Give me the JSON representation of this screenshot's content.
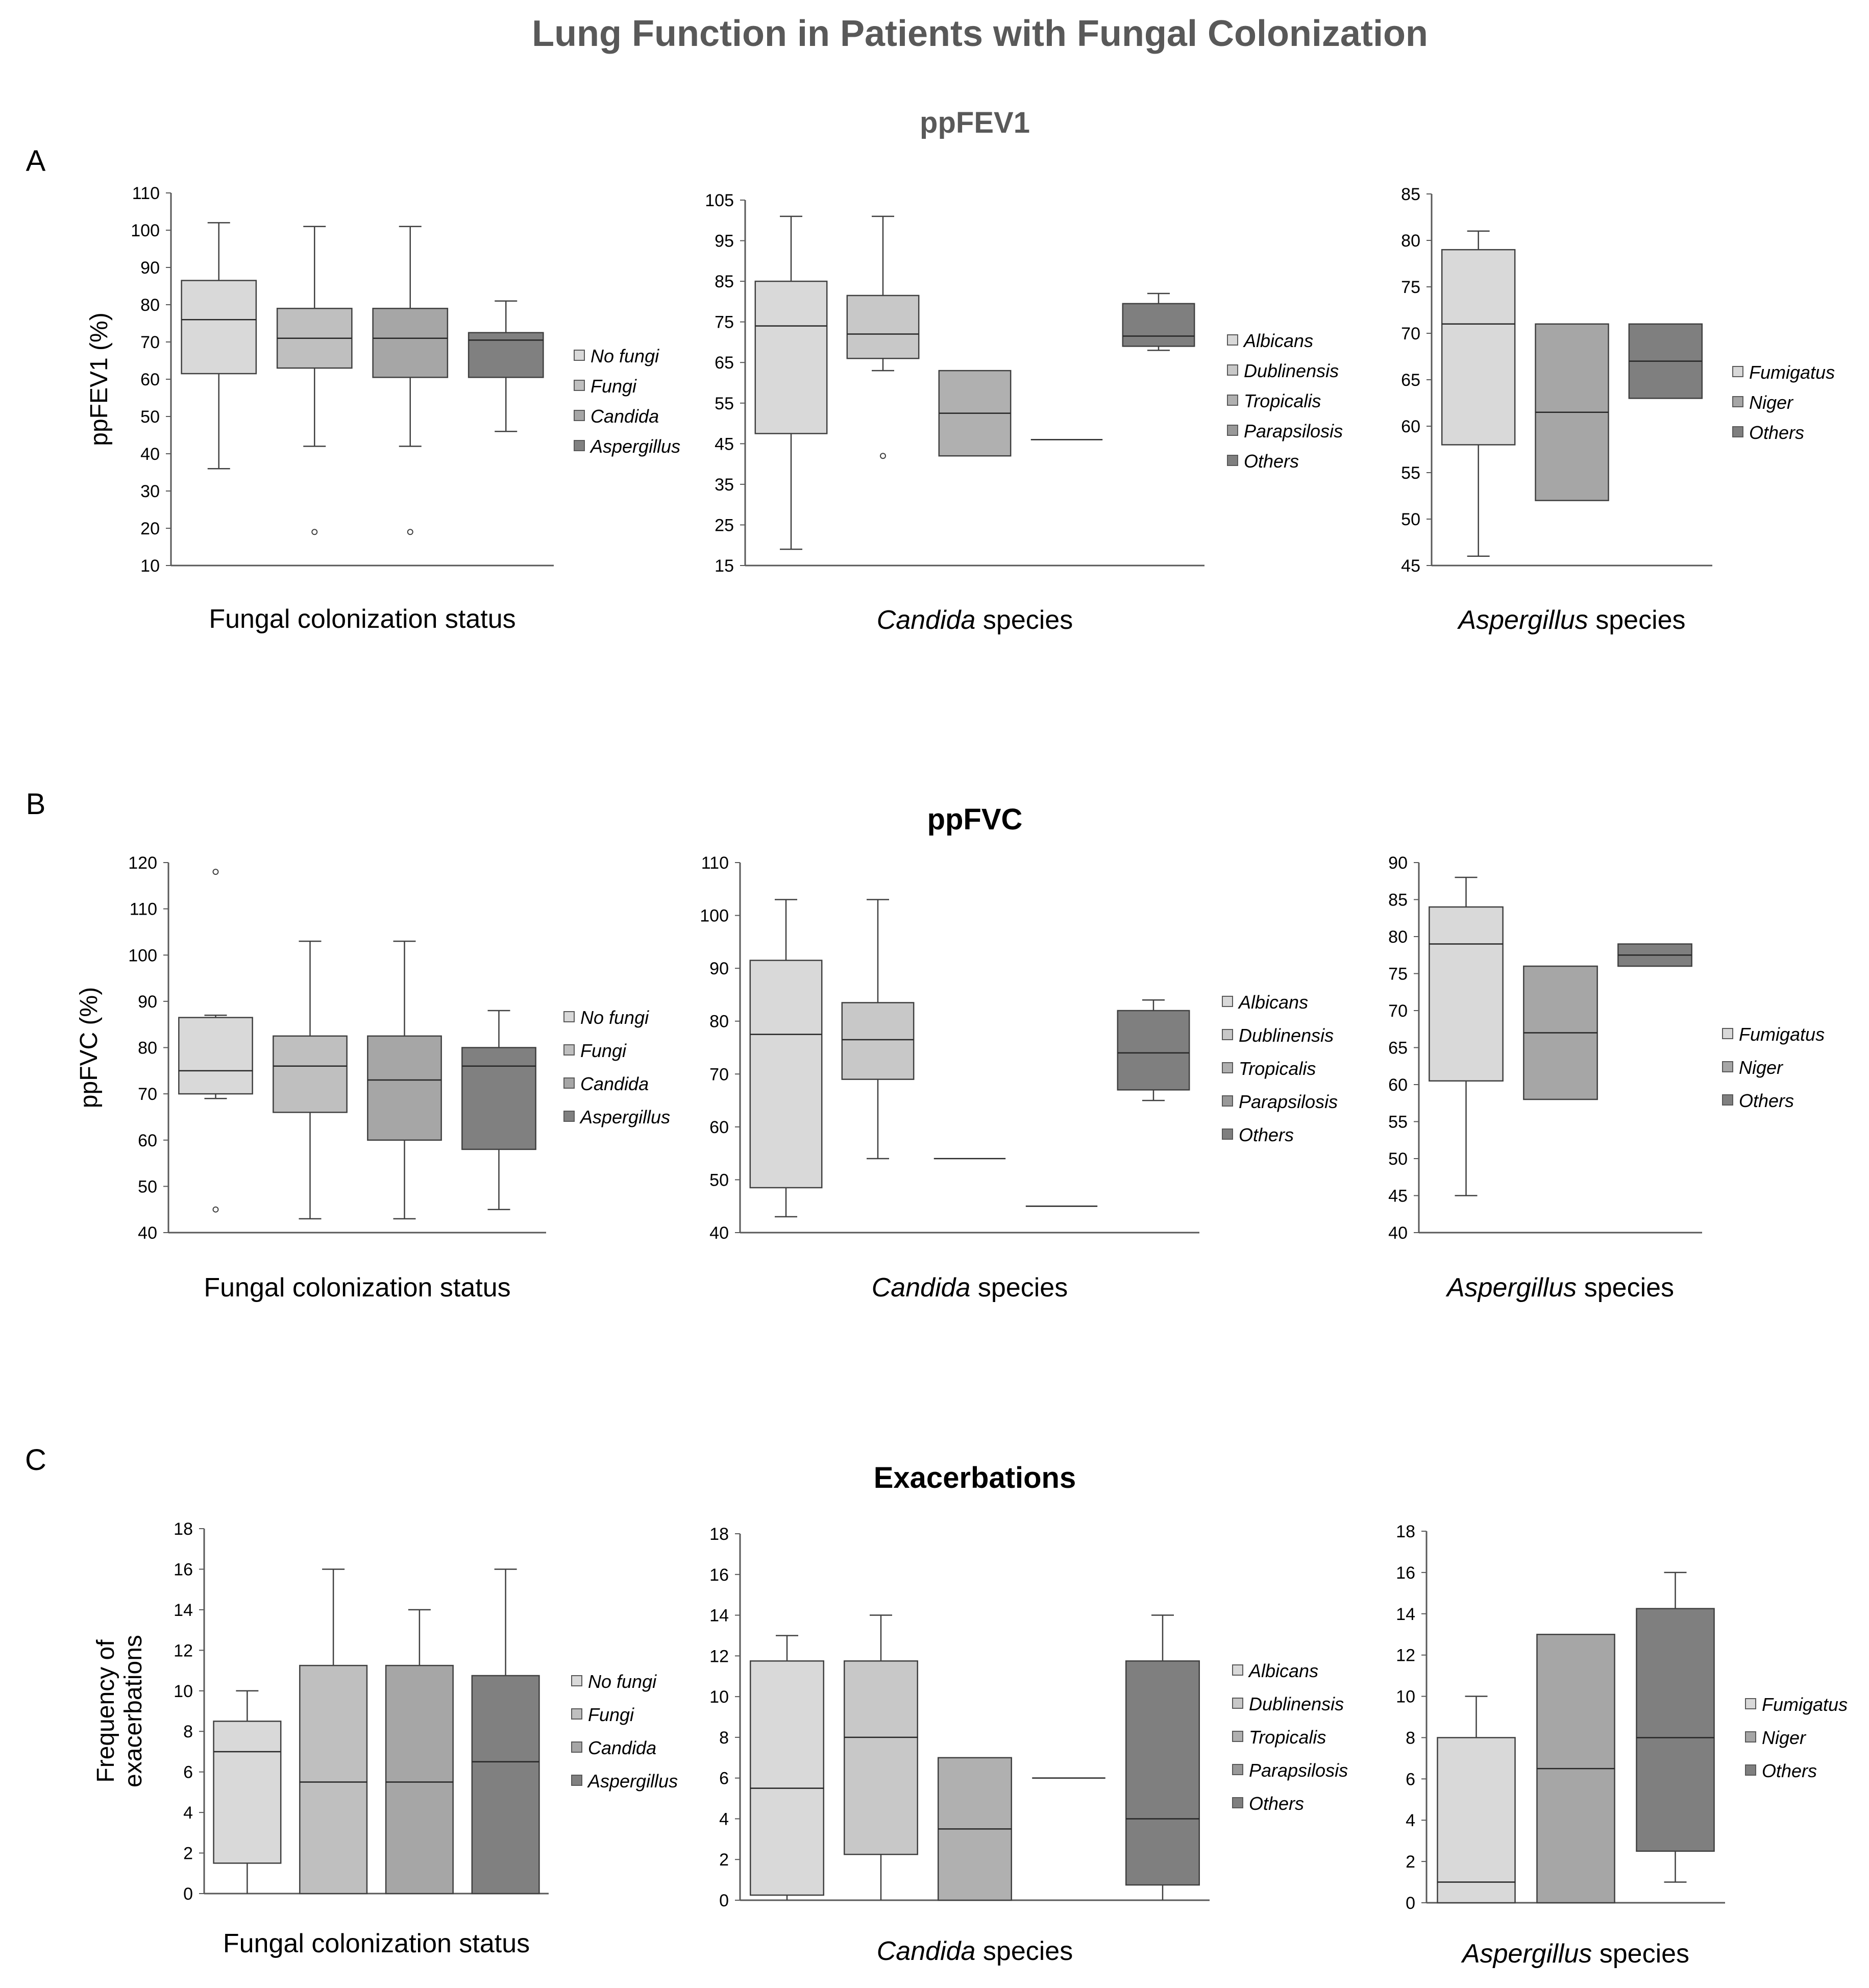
{
  "title": "Lung Function in Patients with Fungal Colonization",
  "sections": [
    {
      "letter": "A",
      "title": "ppFEV1",
      "title_color": "#595959"
    },
    {
      "letter": "B",
      "title": "ppFVC",
      "title_color": "#000000"
    },
    {
      "letter": "C",
      "title": "Exacerbations",
      "title_color": "#000000"
    }
  ],
  "colors": {
    "No fungi": "#d9d9d9",
    "Fungi": "#bfbfbf",
    "Candida": "#a6a6a6",
    "Aspergillus": "#808080",
    "Albicans": "#d9d9d9",
    "Dublinensis": "#c8c8c8",
    "Tropicalis": "#b0b0b0",
    "Parapsilosis": "#999999",
    "Others": "#7f7f7f",
    "Fumigatus": "#d9d9d9",
    "Niger": "#a6a6a6",
    "axis": "#595959"
  },
  "chart_data": [
    {
      "type": "box",
      "section": "A",
      "ylabel": "ppFEV1 (%)",
      "xlabel": "Fungal colonization status",
      "xlabel_italic": "",
      "ylim": [
        10,
        110
      ],
      "yticks": [
        10,
        20,
        30,
        40,
        50,
        60,
        70,
        80,
        90,
        100,
        110
      ],
      "categories": [
        "No fungi",
        "Fungi",
        "Candida",
        "Aspergillus"
      ],
      "boxes": [
        {
          "name": "No fungi",
          "min": 36,
          "q1": 61.5,
          "median": 76,
          "q3": 86.5,
          "max": 102,
          "outliers": []
        },
        {
          "name": "Fungi",
          "min": 42,
          "q1": 63,
          "median": 71,
          "q3": 79,
          "max": 101,
          "outliers": [
            19
          ]
        },
        {
          "name": "Candida",
          "min": 42,
          "q1": 60.5,
          "median": 71,
          "q3": 79,
          "max": 101,
          "outliers": [
            19
          ]
        },
        {
          "name": "Aspergillus",
          "min": 46,
          "q1": 60.5,
          "median": 70.5,
          "q3": 72.5,
          "max": 81,
          "outliers": []
        }
      ]
    },
    {
      "type": "box",
      "section": "A",
      "ylabel": "",
      "xlabel": " species",
      "xlabel_italic": "Candida",
      "ylim": [
        15,
        105
      ],
      "yticks": [
        15,
        25,
        35,
        45,
        55,
        65,
        75,
        85,
        95,
        105
      ],
      "categories": [
        "Albicans",
        "Dublinensis",
        "Tropicalis",
        "Parapsilosis",
        "Others"
      ],
      "boxes": [
        {
          "name": "Albicans",
          "min": 19,
          "q1": 47.5,
          "median": 74,
          "q3": 85,
          "max": 101,
          "outliers": []
        },
        {
          "name": "Dublinensis",
          "min": 63,
          "q1": 66,
          "median": 72,
          "q3": 81.5,
          "max": 101,
          "outliers": [
            42
          ]
        },
        {
          "name": "Tropicalis",
          "min": 42,
          "q1": 42,
          "median": 52.5,
          "q3": 63,
          "max": 63,
          "outliers": []
        },
        {
          "name": "Parapsilosis",
          "min": 46,
          "q1": 46,
          "median": 46,
          "q3": 46,
          "max": 46,
          "outliers": []
        },
        {
          "name": "Others",
          "min": 68,
          "q1": 69,
          "median": 71.5,
          "q3": 79.5,
          "max": 82,
          "outliers": []
        }
      ]
    },
    {
      "type": "box",
      "section": "A",
      "ylabel": "",
      "xlabel": " species",
      "xlabel_italic": "Aspergillus",
      "ylim": [
        45,
        85
      ],
      "yticks": [
        45,
        50,
        55,
        60,
        65,
        70,
        75,
        80,
        85
      ],
      "categories": [
        "Fumigatus",
        "Niger",
        "Others"
      ],
      "boxes": [
        {
          "name": "Fumigatus",
          "min": 46,
          "q1": 58,
          "median": 71,
          "q3": 79,
          "max": 81,
          "outliers": []
        },
        {
          "name": "Niger",
          "min": 52,
          "q1": 52,
          "median": 61.5,
          "q3": 71,
          "max": 71,
          "outliers": []
        },
        {
          "name": "Others",
          "min": 63,
          "q1": 63,
          "median": 67,
          "q3": 71,
          "max": 71,
          "outliers": []
        }
      ]
    },
    {
      "type": "box",
      "section": "B",
      "ylabel": "ppFVC (%)",
      "xlabel": "Fungal colonization status",
      "xlabel_italic": "",
      "ylim": [
        40,
        120
      ],
      "yticks": [
        40,
        50,
        60,
        70,
        80,
        90,
        100,
        110,
        120
      ],
      "categories": [
        "No fungi",
        "Fungi",
        "Candida",
        "Aspergillus"
      ],
      "boxes": [
        {
          "name": "No fungi",
          "min": 69,
          "q1": 70,
          "median": 75,
          "q3": 86.5,
          "max": 87,
          "outliers": [
            118,
            45
          ]
        },
        {
          "name": "Fungi",
          "min": 43,
          "q1": 66,
          "median": 76,
          "q3": 82.5,
          "max": 103,
          "outliers": []
        },
        {
          "name": "Candida",
          "min": 43,
          "q1": 60,
          "median": 73,
          "q3": 82.5,
          "max": 103,
          "outliers": []
        },
        {
          "name": "Aspergillus",
          "min": 45,
          "q1": 58,
          "median": 76,
          "q3": 80,
          "max": 88,
          "outliers": []
        }
      ]
    },
    {
      "type": "box",
      "section": "B",
      "ylabel": "",
      "xlabel": " species",
      "xlabel_italic": "Candida",
      "ylim": [
        40,
        110
      ],
      "yticks": [
        40,
        50,
        60,
        70,
        80,
        90,
        100,
        110
      ],
      "categories": [
        "Albicans",
        "Dublinensis",
        "Tropicalis",
        "Parapsilosis",
        "Others"
      ],
      "boxes": [
        {
          "name": "Albicans",
          "min": 43,
          "q1": 48.5,
          "median": 77.5,
          "q3": 91.5,
          "max": 103,
          "outliers": []
        },
        {
          "name": "Dublinensis",
          "min": 54,
          "q1": 69,
          "median": 76.5,
          "q3": 83.5,
          "max": 103,
          "outliers": []
        },
        {
          "name": "Tropicalis",
          "min": 54,
          "q1": 54,
          "median": 54,
          "q3": 54,
          "max": 54,
          "outliers": []
        },
        {
          "name": "Parapsilosis",
          "min": 45,
          "q1": 45,
          "median": 45,
          "q3": 45,
          "max": 45,
          "outliers": []
        },
        {
          "name": "Others",
          "min": 65,
          "q1": 67,
          "median": 74,
          "q3": 82,
          "max": 84,
          "outliers": []
        }
      ]
    },
    {
      "type": "box",
      "section": "B",
      "ylabel": "",
      "xlabel": " species",
      "xlabel_italic": "Aspergillus",
      "ylim": [
        40,
        90
      ],
      "yticks": [
        40,
        45,
        50,
        55,
        60,
        65,
        70,
        75,
        80,
        85,
        90
      ],
      "categories": [
        "Fumigatus",
        "Niger",
        "Others"
      ],
      "boxes": [
        {
          "name": "Fumigatus",
          "min": 45,
          "q1": 60.5,
          "median": 79,
          "q3": 84,
          "max": 88,
          "outliers": []
        },
        {
          "name": "Niger",
          "min": 58,
          "q1": 58,
          "median": 67,
          "q3": 76,
          "max": 76,
          "outliers": []
        },
        {
          "name": "Others",
          "min": 76,
          "q1": 76,
          "median": 77.5,
          "q3": 79,
          "max": 79,
          "outliers": []
        }
      ]
    },
    {
      "type": "box",
      "section": "C",
      "ylabel": "Frequency of exacerbations",
      "ylabel_lines": [
        "Frequency of",
        "exacerbations"
      ],
      "xlabel": "Fungal colonization status",
      "xlabel_italic": "",
      "ylim": [
        0,
        18
      ],
      "yticks": [
        0,
        2,
        4,
        6,
        8,
        10,
        12,
        14,
        16,
        18
      ],
      "categories": [
        "No fungi",
        "Fungi",
        "Candida",
        "Aspergillus"
      ],
      "boxes": [
        {
          "name": "No fungi",
          "min": 0,
          "q1": 1.5,
          "median": 7,
          "q3": 8.5,
          "max": 10,
          "outliers": []
        },
        {
          "name": "Fungi",
          "min": 0,
          "q1": 0,
          "median": 5.5,
          "q3": 11.25,
          "max": 16,
          "outliers": []
        },
        {
          "name": "Candida",
          "min": 0,
          "q1": 0,
          "median": 5.5,
          "q3": 11.25,
          "max": 14,
          "outliers": []
        },
        {
          "name": "Aspergillus",
          "min": 0,
          "q1": 0,
          "median": 6.5,
          "q3": 10.75,
          "max": 16,
          "outliers": []
        }
      ]
    },
    {
      "type": "box",
      "section": "C",
      "ylabel": "",
      "xlabel": " species",
      "xlabel_italic": "Candida",
      "ylim": [
        0,
        18
      ],
      "yticks": [
        0,
        2,
        4,
        6,
        8,
        10,
        12,
        14,
        16,
        18
      ],
      "categories": [
        "Albicans",
        "Dublinensis",
        "Tropicalis",
        "Parapsilosis",
        "Others"
      ],
      "boxes": [
        {
          "name": "Albicans",
          "min": 0,
          "q1": 0.25,
          "median": 5.5,
          "q3": 11.75,
          "max": 13,
          "outliers": []
        },
        {
          "name": "Dublinensis",
          "min": 0,
          "q1": 2.25,
          "median": 8,
          "q3": 11.75,
          "max": 14,
          "outliers": []
        },
        {
          "name": "Tropicalis",
          "min": 0,
          "q1": 0,
          "median": 3.5,
          "q3": 7,
          "max": 7,
          "outliers": []
        },
        {
          "name": "Parapsilosis",
          "min": 6,
          "q1": 6,
          "median": 6,
          "q3": 6,
          "max": 6,
          "outliers": []
        },
        {
          "name": "Others",
          "min": 0,
          "q1": 0.75,
          "median": 4,
          "q3": 11.75,
          "max": 14,
          "outliers": []
        }
      ]
    },
    {
      "type": "box",
      "section": "C",
      "ylabel": "",
      "xlabel": " species",
      "xlabel_italic": "Aspergillus",
      "ylim": [
        0,
        18
      ],
      "yticks": [
        0,
        2,
        4,
        6,
        8,
        10,
        12,
        14,
        16,
        18
      ],
      "categories": [
        "Fumigatus",
        "Niger",
        "Others"
      ],
      "boxes": [
        {
          "name": "Fumigatus",
          "min": 0,
          "q1": 0,
          "median": 1,
          "q3": 8,
          "max": 10,
          "outliers": []
        },
        {
          "name": "Niger",
          "min": 0,
          "q1": 0,
          "median": 6.5,
          "q3": 13,
          "max": 13,
          "outliers": []
        },
        {
          "name": "Others",
          "min": 1,
          "q1": 2.5,
          "median": 8,
          "q3": 14.25,
          "max": 16,
          "outliers": []
        }
      ]
    }
  ]
}
